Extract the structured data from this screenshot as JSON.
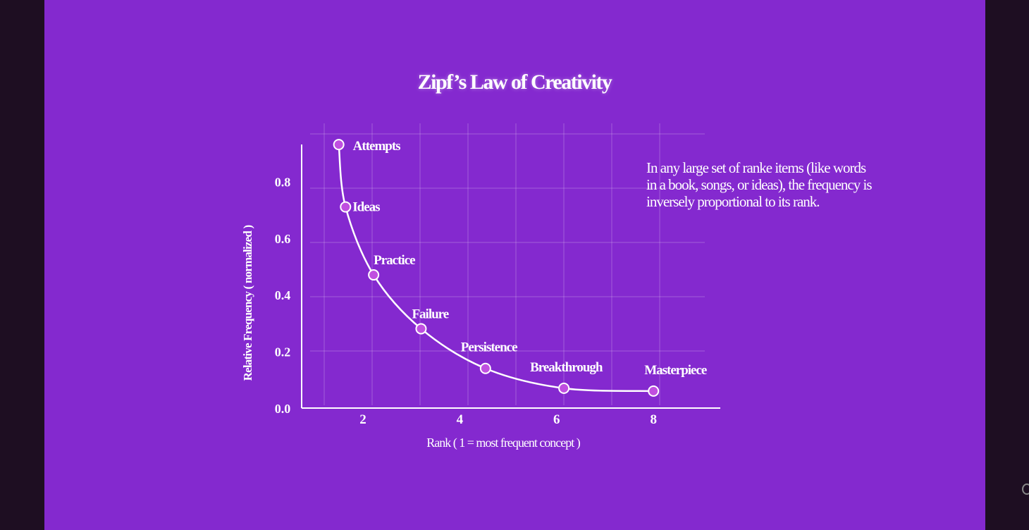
{
  "chart_data": {
    "type": "line",
    "title": "Zipf’s Law of Creativity",
    "xlabel": "Rank ( 1 = most frequent concept )",
    "ylabel": "Relative Frequency ( normalized )",
    "xlim": [
      0.75,
      9.4
    ],
    "ylim": [
      0,
      0.93
    ],
    "xticks": [
      2,
      4,
      6,
      8
    ],
    "yticks": [
      "0.0",
      "0.2",
      "0.4",
      "0.6",
      "0.8"
    ],
    "grid": true,
    "points": [
      {
        "label": "Attempts",
        "x": 1.5,
        "y": 0.93
      },
      {
        "label": "Ideas",
        "x": 1.64,
        "y": 0.71
      },
      {
        "label": "Practice",
        "x": 2.22,
        "y": 0.47
      },
      {
        "label": "Failure",
        "x": 3.2,
        "y": 0.28
      },
      {
        "label": "Persistence",
        "x": 4.53,
        "y": 0.14
      },
      {
        "label": "Breakthrough",
        "x": 6.15,
        "y": 0.07
      },
      {
        "label": "Masterpiece",
        "x": 8,
        "y": 0.06
      }
    ],
    "annotation": "In any large set of ranke items (like words in a book, songs, or ideas), the frequency is inversely proportional to its rank.",
    "colors": {
      "background": "#8429cf",
      "line": "#ffffff",
      "marker": "#c04fe0"
    }
  }
}
